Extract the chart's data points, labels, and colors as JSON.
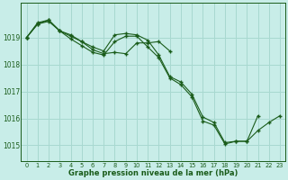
{
  "title": "Graphe pression niveau de la mer (hPa)",
  "background_color": "#c8ede8",
  "grid_color": "#a8d8d0",
  "line_color": "#1a5c1a",
  "marker_color": "#1a5c1a",
  "xlim": [
    -0.5,
    23.5
  ],
  "ylim": [
    1014.4,
    1020.3
  ],
  "yticks": [
    1015,
    1016,
    1017,
    1018,
    1019
  ],
  "xticks": [
    0,
    1,
    2,
    3,
    4,
    5,
    6,
    7,
    8,
    9,
    10,
    11,
    12,
    13,
    14,
    15,
    16,
    17,
    18,
    19,
    20,
    21,
    22,
    23
  ],
  "series": [
    {
      "x": [
        0,
        1,
        2,
        3,
        4,
        5,
        6,
        7,
        8,
        9,
        10,
        11,
        12,
        13,
        14,
        15,
        16,
        17,
        18,
        19,
        20,
        21
      ],
      "y": [
        1019.0,
        1019.55,
        1019.65,
        1019.25,
        1019.1,
        1018.85,
        1018.65,
        1018.5,
        1019.1,
        1019.15,
        1019.1,
        1018.9,
        1018.35,
        1017.55,
        1017.35,
        1016.9,
        1016.05,
        1015.85,
        1015.1,
        1015.15,
        1015.15,
        1016.1
      ]
    },
    {
      "x": [
        0,
        1,
        2,
        3,
        4,
        5,
        6,
        7,
        8,
        9,
        10,
        11,
        12,
        13
      ],
      "y": [
        1019.0,
        1019.5,
        1019.65,
        1019.25,
        1019.05,
        1018.85,
        1018.55,
        1018.4,
        1018.45,
        1018.4,
        1018.8,
        1018.8,
        1018.85,
        1018.5
      ]
    },
    {
      "x": [
        0,
        1,
        2,
        3,
        4,
        5,
        6,
        7,
        8,
        9,
        10,
        11,
        12,
        13,
        14,
        15,
        16,
        17,
        18,
        19,
        20,
        21,
        22,
        23
      ],
      "y": [
        1019.0,
        1019.5,
        1019.6,
        1019.25,
        1018.95,
        1018.7,
        1018.45,
        1018.35,
        1018.85,
        1019.05,
        1019.05,
        1018.65,
        1018.25,
        1017.5,
        1017.25,
        1016.8,
        1015.9,
        1015.75,
        1015.05,
        1015.15,
        1015.15,
        1015.55,
        1015.85,
        1016.1
      ]
    }
  ]
}
